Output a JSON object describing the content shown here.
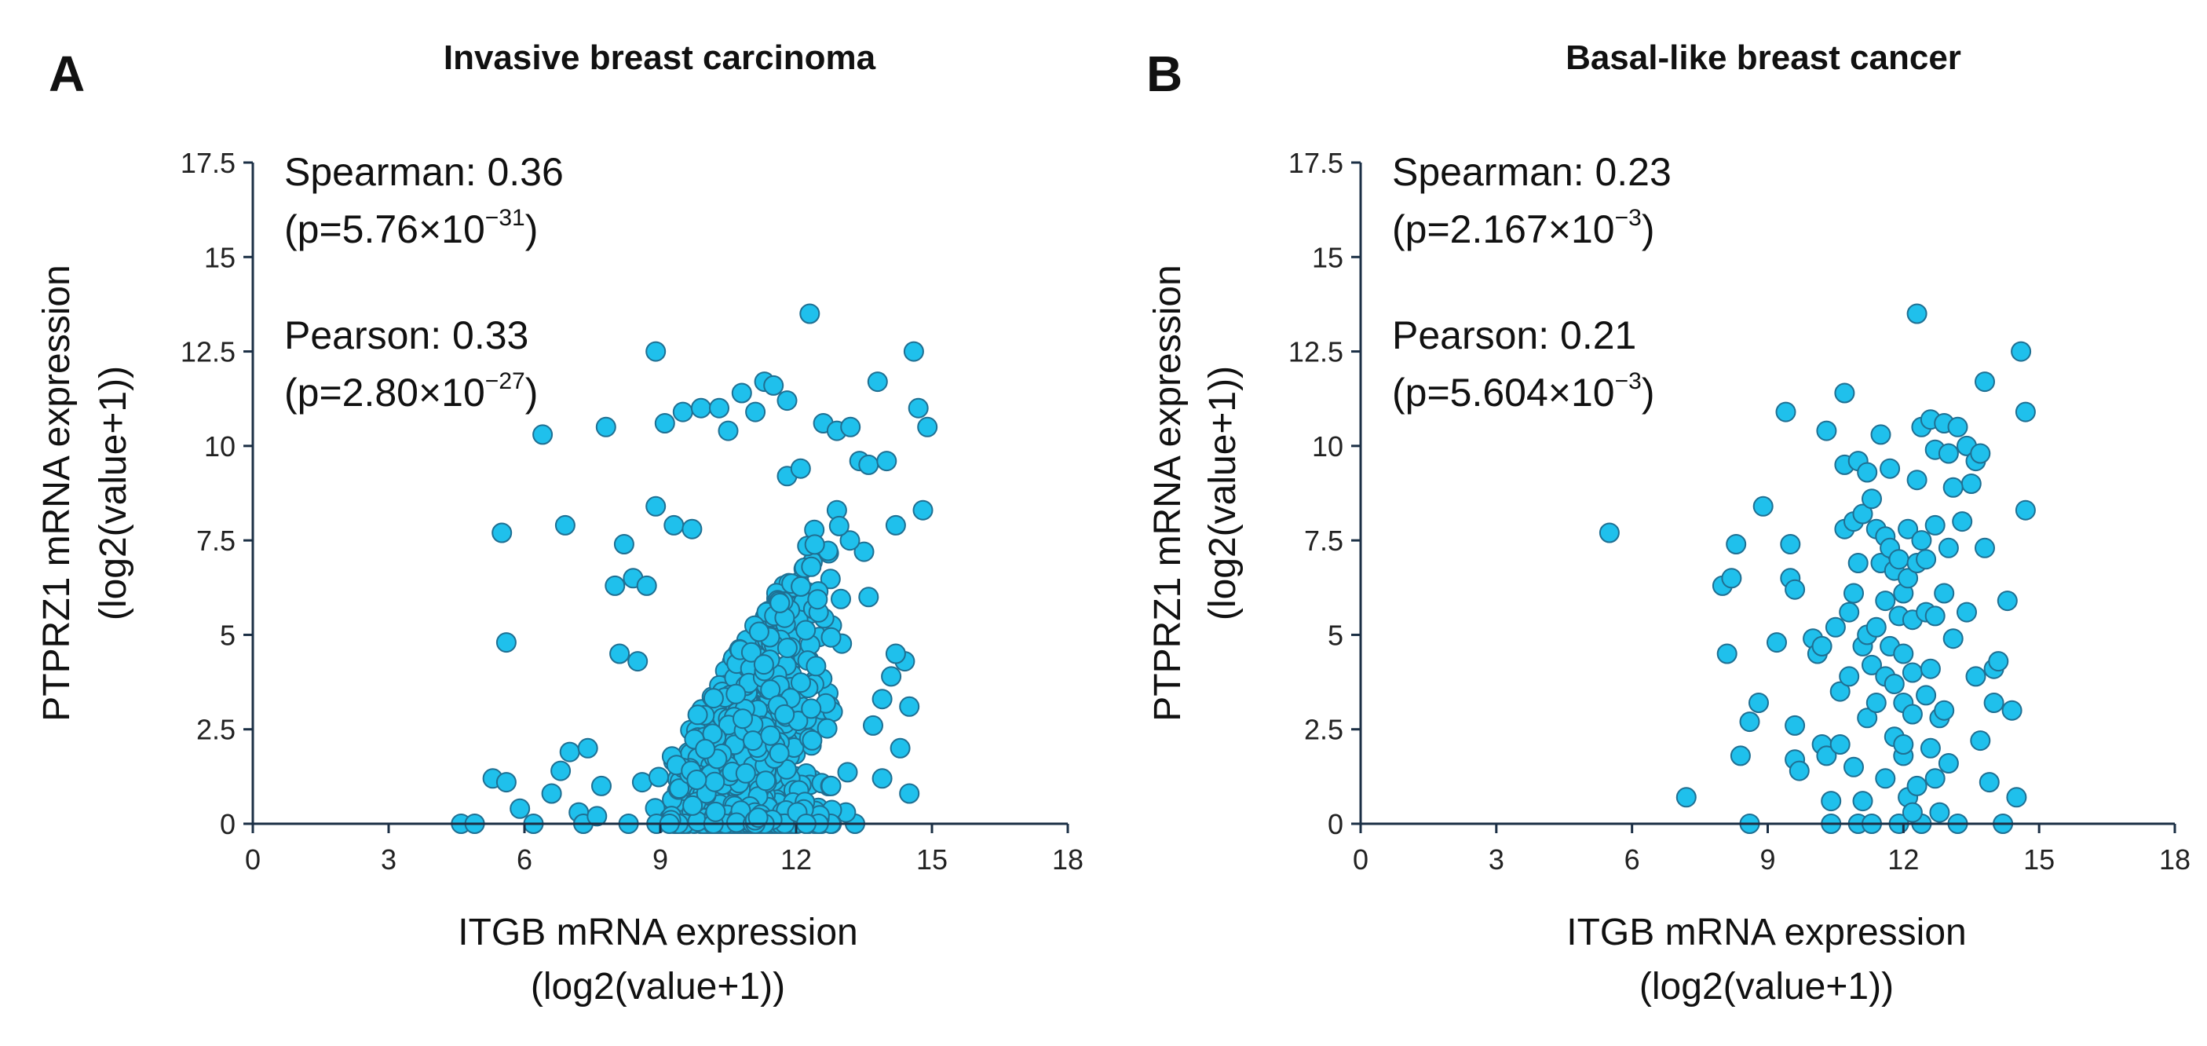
{
  "style": {
    "point_color": "#1fc0ec",
    "point_edge": "#1f6f92",
    "axis_color": "#1b2f45"
  },
  "chart_data": [
    {
      "type": "scatter",
      "panel_label": "A",
      "title": "Invasive breast carcinoma",
      "xlabel_line1": "ITGB mRNA expression",
      "xlabel_line2": "(log2(value+1))",
      "ylabel_line1": "PTPRZ1 mRNA expression",
      "ylabel_line2": "(log2(value+1))",
      "xlim": [
        0,
        18
      ],
      "ylim": [
        0,
        17.5
      ],
      "xticks": [
        0,
        3,
        6,
        9,
        12,
        15,
        18
      ],
      "yticks": [
        "0",
        "2.5",
        "5",
        "7.5",
        "10",
        "12.5",
        "15",
        "17.5"
      ],
      "stats": {
        "spearman": "Spearman: 0.36",
        "spearman_p": "(p=5.76×10",
        "spearman_exp": "−31",
        "pearson": "Pearson: 0.33",
        "pearson_p": "(p=2.80×10",
        "pearson_exp": "−27"
      },
      "generated_cloud": {
        "seed": 7,
        "count": 950,
        "x_range": [
          8.6,
          13.4
        ],
        "y_max": 8.2
      },
      "points": [
        [
          4.6,
          0
        ],
        [
          4.9,
          0
        ],
        [
          5.3,
          1.2
        ],
        [
          5.6,
          1.1
        ],
        [
          5.5,
          7.7
        ],
        [
          5.6,
          4.8
        ],
        [
          5.9,
          0.4
        ],
        [
          6.2,
          0
        ],
        [
          6.4,
          10.3
        ],
        [
          6.6,
          0.8
        ],
        [
          6.8,
          1.4
        ],
        [
          6.9,
          7.9
        ],
        [
          7.0,
          1.9
        ],
        [
          7.2,
          0.3
        ],
        [
          7.3,
          0
        ],
        [
          7.4,
          2.0
        ],
        [
          7.6,
          0.2
        ],
        [
          7.7,
          1.0
        ],
        [
          7.8,
          10.5
        ],
        [
          8.0,
          6.3
        ],
        [
          8.1,
          4.5
        ],
        [
          8.2,
          7.4
        ],
        [
          8.3,
          0
        ],
        [
          8.4,
          6.5
        ],
        [
          8.5,
          4.3
        ],
        [
          8.6,
          1.1
        ],
        [
          8.7,
          6.3
        ],
        [
          8.9,
          8.4
        ],
        [
          8.9,
          12.5
        ],
        [
          9.1,
          10.6
        ],
        [
          9.3,
          7.9
        ],
        [
          9.5,
          10.9
        ],
        [
          9.7,
          7.8
        ],
        [
          9.9,
          11.0
        ],
        [
          10.3,
          11.0
        ],
        [
          10.5,
          10.4
        ],
        [
          10.8,
          11.4
        ],
        [
          11.1,
          10.9
        ],
        [
          11.3,
          11.7
        ],
        [
          11.5,
          11.6
        ],
        [
          11.8,
          11.2
        ],
        [
          12.3,
          13.5
        ],
        [
          12.6,
          10.6
        ],
        [
          12.9,
          10.4
        ],
        [
          13.2,
          10.5
        ],
        [
          13.4,
          9.6
        ],
        [
          13.6,
          9.5
        ],
        [
          13.8,
          11.7
        ],
        [
          14.0,
          9.6
        ],
        [
          14.2,
          7.9
        ],
        [
          14.4,
          4.3
        ],
        [
          14.3,
          2.0
        ],
        [
          14.5,
          3.1
        ],
        [
          14.6,
          12.5
        ],
        [
          14.7,
          11.0
        ],
        [
          14.8,
          8.3
        ],
        [
          14.9,
          10.5
        ],
        [
          14.5,
          0.8
        ],
        [
          13.9,
          1.2
        ],
        [
          13.7,
          2.6
        ],
        [
          13.3,
          0
        ],
        [
          13.6,
          6.0
        ],
        [
          13.9,
          3.3
        ],
        [
          14.1,
          3.9
        ],
        [
          14.2,
          4.5
        ],
        [
          13.5,
          7.2
        ],
        [
          12.9,
          8.3
        ],
        [
          13.1,
          0.3
        ],
        [
          11.8,
          9.2
        ],
        [
          12.1,
          9.4
        ]
      ]
    },
    {
      "type": "scatter",
      "panel_label": "B",
      "title": "Basal-like breast cancer",
      "xlabel_line1": "ITGB mRNA expression",
      "xlabel_line2": "(log2(value+1))",
      "ylabel_line1": "PTPRZ1 mRNA expression",
      "ylabel_line2": "(log2(value+1))",
      "xlim": [
        0,
        18
      ],
      "ylim": [
        0,
        17.5
      ],
      "xticks": [
        0,
        3,
        6,
        9,
        12,
        15,
        18
      ],
      "yticks": [
        "0",
        "2.5",
        "5",
        "7.5",
        "10",
        "12.5",
        "15",
        "17.5"
      ],
      "stats": {
        "spearman": "Spearman: 0.23",
        "spearman_p": "(p=2.167×10",
        "spearman_exp": "−3",
        "pearson": "Pearson: 0.21",
        "pearson_p": "(p=5.604×10",
        "pearson_exp": "−3"
      },
      "points": [
        [
          5.5,
          7.7
        ],
        [
          7.2,
          0.7
        ],
        [
          8.0,
          6.3
        ],
        [
          8.1,
          4.5
        ],
        [
          8.2,
          6.5
        ],
        [
          8.3,
          7.4
        ],
        [
          8.4,
          1.8
        ],
        [
          8.6,
          0
        ],
        [
          8.6,
          2.7
        ],
        [
          8.8,
          3.2
        ],
        [
          8.9,
          8.4
        ],
        [
          9.2,
          4.8
        ],
        [
          9.4,
          10.9
        ],
        [
          9.5,
          7.4
        ],
        [
          9.5,
          6.5
        ],
        [
          9.6,
          6.2
        ],
        [
          9.6,
          2.6
        ],
        [
          9.6,
          1.7
        ],
        [
          9.7,
          1.4
        ],
        [
          10.0,
          4.9
        ],
        [
          10.1,
          4.5
        ],
        [
          10.2,
          2.1
        ],
        [
          10.3,
          10.4
        ],
        [
          10.3,
          1.8
        ],
        [
          10.4,
          0
        ],
        [
          10.4,
          0.6
        ],
        [
          10.5,
          5.2
        ],
        [
          10.6,
          3.5
        ],
        [
          10.6,
          2.1
        ],
        [
          10.7,
          11.4
        ],
        [
          10.7,
          9.5
        ],
        [
          10.7,
          7.8
        ],
        [
          10.8,
          5.6
        ],
        [
          10.8,
          3.9
        ],
        [
          10.9,
          1.5
        ],
        [
          10.9,
          8.0
        ],
        [
          11.0,
          9.6
        ],
        [
          11.0,
          6.9
        ],
        [
          11.0,
          0
        ],
        [
          11.1,
          8.2
        ],
        [
          11.1,
          4.7
        ],
        [
          11.1,
          0.6
        ],
        [
          11.2,
          9.3
        ],
        [
          11.2,
          5.0
        ],
        [
          11.2,
          2.8
        ],
        [
          11.3,
          0
        ],
        [
          11.3,
          4.2
        ],
        [
          11.4,
          3.2
        ],
        [
          11.4,
          5.2
        ],
        [
          11.4,
          7.8
        ],
        [
          11.5,
          10.3
        ],
        [
          11.5,
          6.9
        ],
        [
          11.6,
          7.6
        ],
        [
          11.6,
          3.9
        ],
        [
          11.6,
          5.9
        ],
        [
          11.6,
          1.2
        ],
        [
          11.7,
          9.4
        ],
        [
          11.7,
          7.3
        ],
        [
          11.7,
          4.7
        ],
        [
          11.8,
          6.7
        ],
        [
          11.8,
          2.3
        ],
        [
          11.9,
          0
        ],
        [
          11.9,
          5.5
        ],
        [
          11.9,
          7.0
        ],
        [
          12.0,
          6.1
        ],
        [
          12.0,
          3.2
        ],
        [
          12.0,
          4.5
        ],
        [
          12.0,
          1.8
        ],
        [
          12.1,
          6.5
        ],
        [
          12.1,
          7.8
        ],
        [
          12.1,
          0.7
        ],
        [
          12.2,
          5.4
        ],
        [
          12.2,
          2.9
        ],
        [
          12.2,
          4.0
        ],
        [
          12.3,
          13.5
        ],
        [
          12.3,
          9.1
        ],
        [
          12.3,
          6.9
        ],
        [
          12.3,
          1.0
        ],
        [
          12.4,
          10.5
        ],
        [
          12.4,
          0
        ],
        [
          12.4,
          7.5
        ],
        [
          12.5,
          5.6
        ],
        [
          12.5,
          3.4
        ],
        [
          12.6,
          10.7
        ],
        [
          12.6,
          4.1
        ],
        [
          12.6,
          2.0
        ],
        [
          12.7,
          9.9
        ],
        [
          12.7,
          7.9
        ],
        [
          12.7,
          5.5
        ],
        [
          12.7,
          1.2
        ],
        [
          12.8,
          0.3
        ],
        [
          12.8,
          2.8
        ],
        [
          12.9,
          10.6
        ],
        [
          12.9,
          6.1
        ],
        [
          12.9,
          3.0
        ],
        [
          13.0,
          9.8
        ],
        [
          13.0,
          7.3
        ],
        [
          13.1,
          4.9
        ],
        [
          13.2,
          10.5
        ],
        [
          13.2,
          0
        ],
        [
          13.3,
          8.0
        ],
        [
          13.4,
          10.0
        ],
        [
          13.4,
          5.6
        ],
        [
          13.5,
          9.0
        ],
        [
          13.6,
          9.6
        ],
        [
          13.6,
          3.9
        ],
        [
          13.7,
          9.8
        ],
        [
          13.7,
          2.2
        ],
        [
          13.8,
          7.3
        ],
        [
          13.8,
          11.7
        ],
        [
          13.9,
          1.1
        ],
        [
          14.0,
          3.2
        ],
        [
          14.0,
          4.1
        ],
        [
          14.1,
          4.3
        ],
        [
          14.2,
          0
        ],
        [
          14.3,
          5.9
        ],
        [
          14.4,
          3.0
        ],
        [
          14.5,
          0.7
        ],
        [
          14.6,
          12.5
        ],
        [
          14.7,
          10.9
        ],
        [
          14.7,
          8.3
        ],
        [
          13.1,
          8.9
        ],
        [
          12.0,
          2.1
        ],
        [
          10.9,
          6.1
        ],
        [
          11.8,
          3.7
        ],
        [
          12.5,
          7.0
        ],
        [
          11.3,
          8.6
        ],
        [
          10.2,
          4.7
        ],
        [
          12.2,
          0.3
        ],
        [
          13.0,
          1.6
        ]
      ]
    }
  ]
}
